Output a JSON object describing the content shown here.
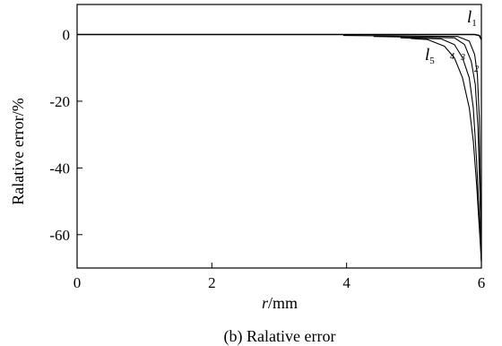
{
  "caption": "(b) Ralative error",
  "chart_data": {
    "type": "line",
    "title": "",
    "xlabel_var": "r",
    "xlabel_unit": "/mm",
    "ylabel": "Ralative error/%",
    "xlim": [
      0,
      6
    ],
    "ylim": [
      -70,
      9
    ],
    "xticks": [
      "0",
      "2",
      "4",
      "6"
    ],
    "yticks": [
      "0",
      "-20",
      "-40",
      "-60"
    ],
    "xtick_values": [
      0,
      2,
      4,
      6
    ],
    "ytick_values": [
      0,
      -20,
      -40,
      -60
    ],
    "grid": false,
    "series": [
      {
        "name": "l1",
        "label_main": "l",
        "label_sub": "1",
        "x": [
          0,
          5.9,
          5.97,
          6.0
        ],
        "y": [
          0,
          0,
          -0.3,
          -1.5
        ]
      },
      {
        "name": "l2",
        "label_main": "",
        "label_sub": "2",
        "x": [
          3.95,
          5.65,
          5.82,
          5.9,
          5.94,
          5.97,
          6.0
        ],
        "y": [
          -0.3,
          -0.6,
          -2,
          -6,
          -12,
          -25,
          -68
        ]
      },
      {
        "name": "l3",
        "label_main": "",
        "label_sub": "3",
        "x": [
          4.4,
          5.6,
          5.75,
          5.85,
          5.91,
          5.95,
          5.98,
          6.0
        ],
        "y": [
          -0.6,
          -1.0,
          -3,
          -8,
          -15,
          -28,
          -48,
          -68
        ]
      },
      {
        "name": "l4",
        "label_main": "",
        "label_sub": "4",
        "x": [
          4.8,
          5.4,
          5.6,
          5.72,
          5.82,
          5.88,
          5.93,
          5.97,
          6.0
        ],
        "y": [
          -1.0,
          -1.3,
          -3,
          -7,
          -13,
          -22,
          -38,
          -55,
          -68
        ]
      },
      {
        "name": "l5",
        "label_main": "l",
        "label_sub": "5",
        "x": [
          4.95,
          5.2,
          5.45,
          5.6,
          5.72,
          5.82,
          5.88,
          5.93,
          5.97,
          6.0
        ],
        "y": [
          -1.2,
          -1.5,
          -3.5,
          -7,
          -13,
          -22,
          -32,
          -45,
          -58,
          -68
        ]
      }
    ]
  }
}
